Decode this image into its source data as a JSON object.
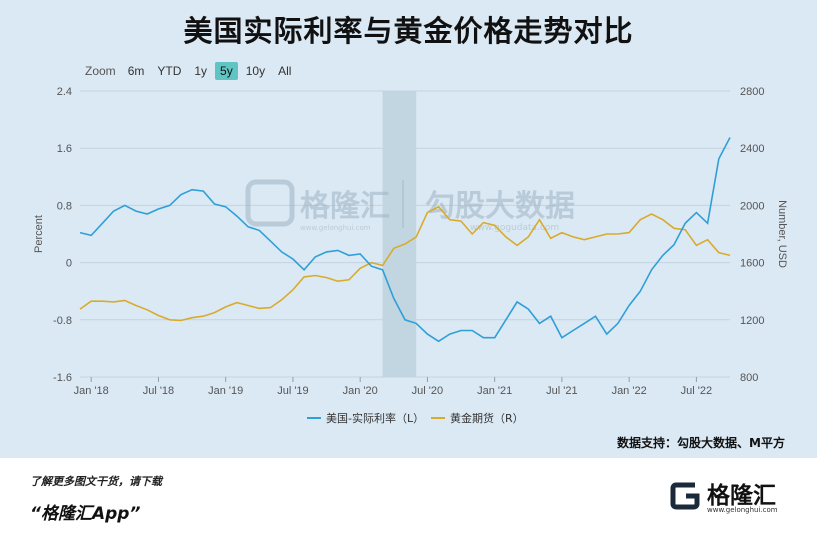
{
  "title": "美国实际利率与黄金价格走势对比",
  "zoom": {
    "label": "Zoom",
    "buttons": [
      "6m",
      "YTD",
      "1y",
      "5y",
      "10y",
      "All"
    ],
    "active": "5y"
  },
  "watermark": {
    "brand": "格隆汇",
    "partner": "勾股大数据",
    "url": "www.gogudata.com",
    "url2": "www.gelonghui.com"
  },
  "source": "数据支持：勾股大数据、M平方",
  "footer": {
    "line1": "了解更多图文干货，请下载",
    "line2": "“格隆汇App”",
    "logo_text": "格隆汇",
    "logo_url": "www.gelonghui.com"
  },
  "colors": {
    "real_rate": "#2f9fd8",
    "gold": "#d9ab2c",
    "band": "#b9cfdc",
    "active_zoom": "#5fc4c2"
  },
  "chart_data": {
    "type": "line",
    "x_tick_labels": [
      "Jan '18",
      "Jul '18",
      "Jan '19",
      "Jul '19",
      "Jan '20",
      "Jul '20",
      "Jan '21",
      "Jul '21",
      "Jan '22",
      "Jul '22"
    ],
    "x_range": [
      "2017-12",
      "2022-10"
    ],
    "left_axis": {
      "label": "Percent",
      "ticks": [
        "2.4",
        "1.6",
        "0.8",
        "0",
        "-0.8",
        "-1.6"
      ],
      "range": [
        -1.6,
        2.4
      ]
    },
    "right_axis": {
      "label": "Number, USD",
      "ticks": [
        "2800",
        "2400",
        "2000",
        "1600",
        "1200",
        "800"
      ],
      "range": [
        800,
        2800
      ]
    },
    "shaded_period": [
      "2020-03",
      "2020-06"
    ],
    "legend": {
      "position": "bottom"
    },
    "series": [
      {
        "name": "美国-实际利率（L）",
        "axis": "left",
        "x": [
          "2017-12",
          "2018-01",
          "2018-02",
          "2018-03",
          "2018-04",
          "2018-05",
          "2018-06",
          "2018-07",
          "2018-08",
          "2018-09",
          "2018-10",
          "2018-11",
          "2018-12",
          "2019-01",
          "2019-02",
          "2019-03",
          "2019-04",
          "2019-05",
          "2019-06",
          "2019-07",
          "2019-08",
          "2019-09",
          "2019-10",
          "2019-11",
          "2019-12",
          "2020-01",
          "2020-02",
          "2020-03",
          "2020-04",
          "2020-05",
          "2020-06",
          "2020-07",
          "2020-08",
          "2020-09",
          "2020-10",
          "2020-11",
          "2020-12",
          "2021-01",
          "2021-02",
          "2021-03",
          "2021-04",
          "2021-05",
          "2021-06",
          "2021-07",
          "2021-08",
          "2021-09",
          "2021-10",
          "2021-11",
          "2021-12",
          "2022-01",
          "2022-02",
          "2022-03",
          "2022-04",
          "2022-05",
          "2022-06",
          "2022-07",
          "2022-08",
          "2022-09",
          "2022-10"
        ],
        "values": [
          0.42,
          0.38,
          0.55,
          0.72,
          0.8,
          0.72,
          0.68,
          0.75,
          0.8,
          0.95,
          1.02,
          1.0,
          0.82,
          0.78,
          0.65,
          0.5,
          0.45,
          0.3,
          0.15,
          0.05,
          -0.1,
          0.08,
          0.15,
          0.17,
          0.1,
          0.12,
          -0.05,
          -0.1,
          -0.5,
          -0.8,
          -0.85,
          -1.0,
          -1.1,
          -1.0,
          -0.95,
          -0.95,
          -1.05,
          -1.05,
          -0.8,
          -0.55,
          -0.65,
          -0.85,
          -0.75,
          -1.05,
          -0.95,
          -0.85,
          -0.75,
          -1.0,
          -0.85,
          -0.6,
          -0.4,
          -0.1,
          0.1,
          0.25,
          0.55,
          0.7,
          0.55,
          1.45,
          1.75
        ]
      },
      {
        "name": "黄金期货（R）",
        "axis": "right",
        "x": [
          "2017-12",
          "2018-01",
          "2018-02",
          "2018-03",
          "2018-04",
          "2018-05",
          "2018-06",
          "2018-07",
          "2018-08",
          "2018-09",
          "2018-10",
          "2018-11",
          "2018-12",
          "2019-01",
          "2019-02",
          "2019-03",
          "2019-04",
          "2019-05",
          "2019-06",
          "2019-07",
          "2019-08",
          "2019-09",
          "2019-10",
          "2019-11",
          "2019-12",
          "2020-01",
          "2020-02",
          "2020-03",
          "2020-04",
          "2020-05",
          "2020-06",
          "2020-07",
          "2020-08",
          "2020-09",
          "2020-10",
          "2020-11",
          "2020-12",
          "2021-01",
          "2021-02",
          "2021-03",
          "2021-04",
          "2021-05",
          "2021-06",
          "2021-07",
          "2021-08",
          "2021-09",
          "2021-10",
          "2021-11",
          "2021-12",
          "2022-01",
          "2022-02",
          "2022-03",
          "2022-04",
          "2022-05",
          "2022-06",
          "2022-07",
          "2022-08",
          "2022-09",
          "2022-10"
        ],
        "values": [
          1275,
          1330,
          1330,
          1325,
          1335,
          1300,
          1270,
          1230,
          1200,
          1195,
          1215,
          1225,
          1250,
          1290,
          1320,
          1300,
          1280,
          1285,
          1340,
          1410,
          1500,
          1510,
          1495,
          1470,
          1480,
          1560,
          1600,
          1580,
          1700,
          1730,
          1780,
          1950,
          1990,
          1900,
          1890,
          1800,
          1880,
          1860,
          1780,
          1720,
          1780,
          1900,
          1770,
          1810,
          1780,
          1760,
          1780,
          1800,
          1800,
          1810,
          1900,
          1940,
          1900,
          1840,
          1830,
          1720,
          1760,
          1670,
          1650
        ]
      }
    ]
  }
}
